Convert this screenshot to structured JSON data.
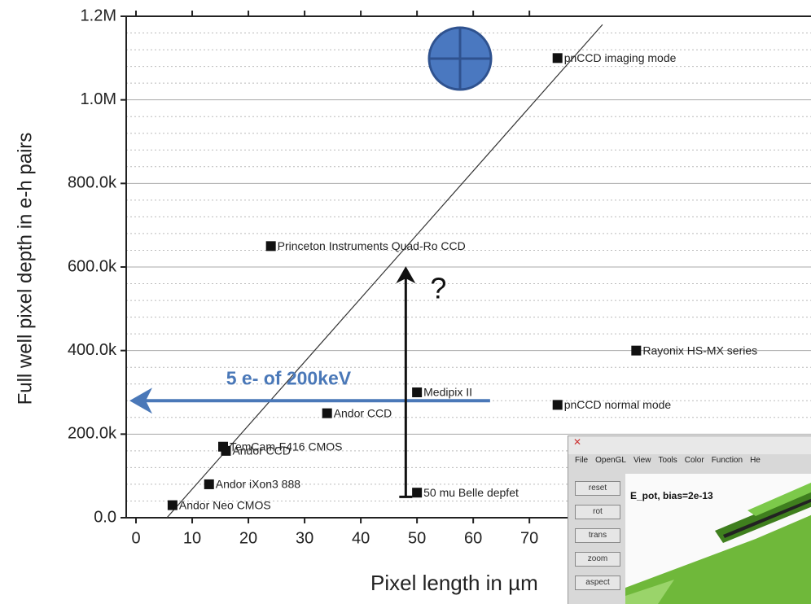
{
  "chart_data": {
    "type": "scatter",
    "xlabel": "Pixel length in µm",
    "ylabel": "Full well pixel depth in e-h pairs",
    "x": [
      75,
      24,
      89,
      50,
      75,
      34,
      15.5,
      16,
      13,
      50,
      6.5
    ],
    "values": [
      1100000,
      650000,
      400000,
      300000,
      270000,
      250000,
      170000,
      160000,
      80000,
      60000,
      30000
    ],
    "labels": [
      "pnCCD imaging mode",
      "Princeton Instruments Quad-Ro CCD",
      "Rayonix HS-MX series",
      "Medipix II",
      "pnCCD normal mode",
      "Andor CCD",
      "TemCam-F416 CMOS",
      "Andor CCD",
      "Andor iXon3 888",
      "50 mu Belle depfet",
      "Andor Neo CMOS"
    ],
    "color": "#111111",
    "fit": {
      "x": [
        5.5,
        83
      ],
      "values": [
        0,
        1180000
      ],
      "color": "#333333"
    },
    "annotations": [
      {
        "text": "5 e- of 200keV",
        "x": [
          63,
          0
        ],
        "y": [
          280000,
          280000
        ],
        "color": "#4a78b8"
      },
      {
        "text": "?",
        "x": [
          48,
          48
        ],
        "y": [
          50000,
          590000
        ],
        "color": "#111111"
      }
    ],
    "xlim": [
      -1.74,
      120.1
    ],
    "ylim": [
      0,
      1200000
    ],
    "xticks": [
      0,
      10,
      20,
      30,
      40,
      50,
      60,
      70
    ],
    "yticks": [
      {
        "value": 0,
        "label": "0.0"
      },
      {
        "value": 200000,
        "label": "200.0k"
      },
      {
        "value": 400000,
        "label": "400.0k"
      },
      {
        "value": 600000,
        "label": "600.0k"
      },
      {
        "value": 800000,
        "label": "800.0k"
      },
      {
        "value": 1000000,
        "label": "1.0M"
      },
      {
        "value": 1200000,
        "label": "1.2M"
      }
    ],
    "yminorticks": [
      40000,
      80000,
      120000,
      160000,
      240000,
      280000,
      320000,
      360000,
      440000,
      480000,
      520000,
      560000,
      640000,
      680000,
      720000,
      760000,
      840000,
      880000,
      920000,
      960000,
      1040000,
      1080000,
      1120000,
      1160000
    ],
    "grid": true
  },
  "inset": {
    "menu": [
      "File",
      "OpenGL",
      "View",
      "Tools",
      "Color",
      "Function",
      "He"
    ],
    "buttons": [
      "reset",
      "rot",
      "trans",
      "zoom",
      "aspect"
    ],
    "plot_title": "E_pot, bias=2e-13"
  }
}
